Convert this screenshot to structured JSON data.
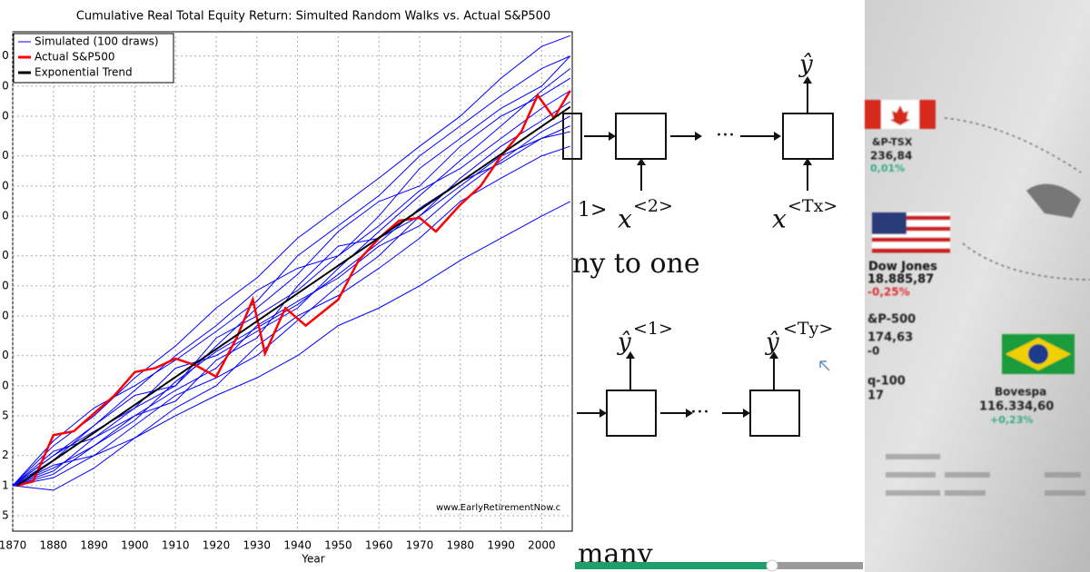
{
  "chart_data": {
    "type": "line",
    "title": "Cumulative Real Total Equity Return: Simulted Random Walks vs. Actual S&P500",
    "xlabel": "Year",
    "watermark": "www.EarlyRetirementNow.c",
    "log_y": true,
    "grid": true,
    "legend": "upper left",
    "xlim": [
      1870,
      2007.5
    ],
    "xticks": [
      1870,
      1880,
      1890,
      1900,
      1910,
      1920,
      1930,
      1940,
      1950,
      1960,
      1970,
      1980,
      1990,
      2000
    ],
    "ylim": [
      0.35,
      35000
    ],
    "yticks": [
      {
        "value": 0.5,
        "label": "5"
      },
      1,
      2,
      {
        "value": 5,
        "label": "5"
      },
      {
        "value": 10,
        "label": "0"
      },
      {
        "value": 20,
        "label": "0"
      },
      {
        "value": 50,
        "label": "0"
      },
      {
        "value": 100,
        "label": "0"
      },
      {
        "value": 200,
        "label": "0"
      },
      {
        "value": 500,
        "label": "0"
      },
      {
        "value": 1000,
        "label": "0"
      },
      {
        "value": 2000,
        "label": "0"
      },
      {
        "value": 5000,
        "label": "0"
      },
      {
        "value": 10000,
        "label": "0"
      },
      {
        "value": 20000,
        "label": "0"
      }
    ],
    "series": [
      {
        "name": "Simulated (100 draws)",
        "color": "#0000ff",
        "x": [
          1870,
          1880,
          1890,
          1900,
          1910,
          1920,
          1930,
          1940,
          1950,
          1960,
          1970,
          1980,
          1990,
          2000,
          2007
        ],
        "draws": [
          [
            1,
            2.5,
            5,
            12,
            25,
            60,
            120,
            300,
            600,
            1200,
            2500,
            5000,
            12000,
            25000,
            32000
          ],
          [
            1,
            1.2,
            2,
            3,
            5,
            8,
            12,
            20,
            40,
            60,
            100,
            180,
            300,
            500,
            700
          ],
          [
            1,
            2,
            4,
            8,
            10,
            30,
            50,
            90,
            200,
            400,
            900,
            1500,
            3000,
            6000,
            9000
          ],
          [
            1,
            1.5,
            2.5,
            5,
            9,
            15,
            40,
            70,
            120,
            250,
            400,
            900,
            1800,
            3500,
            5000
          ],
          [
            1,
            2.2,
            3,
            6,
            15,
            20,
            35,
            60,
            150,
            350,
            800,
            1800,
            4000,
            9000,
            15000
          ],
          [
            1,
            1.4,
            3,
            5,
            7,
            18,
            30,
            100,
            250,
            300,
            500,
            1000,
            2000,
            3000,
            4000
          ],
          [
            1,
            1.8,
            4,
            9,
            20,
            40,
            90,
            150,
            200,
            500,
            1500,
            3000,
            6000,
            10000,
            20000
          ],
          [
            1,
            0.9,
            1.5,
            3,
            6,
            10,
            25,
            50,
            80,
            150,
            300,
            700,
            1200,
            2000,
            2500
          ],
          [
            1,
            2,
            3.5,
            6,
            10,
            25,
            60,
            130,
            350,
            700,
            1000,
            2500,
            5000,
            8000,
            12000
          ],
          [
            1,
            1.6,
            2,
            4,
            8,
            12,
            20,
            45,
            100,
            200,
            500,
            1200,
            2500,
            4500,
            7000
          ],
          [
            1,
            2.8,
            6,
            10,
            18,
            35,
            70,
            200,
            400,
            800,
            2000,
            4000,
            8000,
            15000,
            20000
          ],
          [
            1,
            1.3,
            2.5,
            4.5,
            11,
            22,
            38,
            65,
            130,
            270,
            600,
            1100,
            1700,
            3000,
            3500
          ]
        ]
      },
      {
        "name": "Actual S&P500",
        "color": "#ff0000",
        "x": [
          1871,
          1875,
          1880,
          1885,
          1890,
          1895,
          1900,
          1905,
          1910,
          1915,
          1920,
          1925,
          1929,
          1932,
          1937,
          1942,
          1950,
          1955,
          1960,
          1965,
          1970,
          1974,
          1980,
          1985,
          1990,
          1995,
          1999,
          2003,
          2007
        ],
        "values": [
          1,
          1.1,
          3.2,
          3.5,
          5.3,
          8,
          13.7,
          15,
          18.7,
          16,
          12.3,
          30,
          73,
          21,
          60,
          40,
          73,
          180,
          300,
          450,
          480,
          350,
          650,
          1000,
          2000,
          3500,
          8100,
          4800,
          9000
        ]
      },
      {
        "name": "Exponential Trend",
        "color": "#000000",
        "x": [
          1871,
          2007
        ],
        "values": [
          1,
          6200
        ]
      }
    ]
  },
  "diagram": {
    "top_yhat": "ŷ",
    "x1_tail": "1>",
    "x2": "x",
    "x2_sup": "<2>",
    "xT": "x",
    "xT_sup": "<Tx>",
    "heading": "ny to one",
    "yhat1": "ŷ",
    "yhat1_sup": "<1>",
    "yhatT": "ŷ",
    "yhatT_sup": "<Ty>",
    "dots_top": "···",
    "dots_bottom": "···",
    "footer": "many"
  },
  "photo": {
    "items": [
      "&P-TSX",
      "236,84",
      "0,01%",
      "Dow Jones",
      "18.885,87",
      "-0,25%",
      "&P-500",
      "174,63",
      "-0",
      "q-100",
      "17",
      "Bovespa",
      "116.334,60",
      "+0,23%"
    ]
  }
}
